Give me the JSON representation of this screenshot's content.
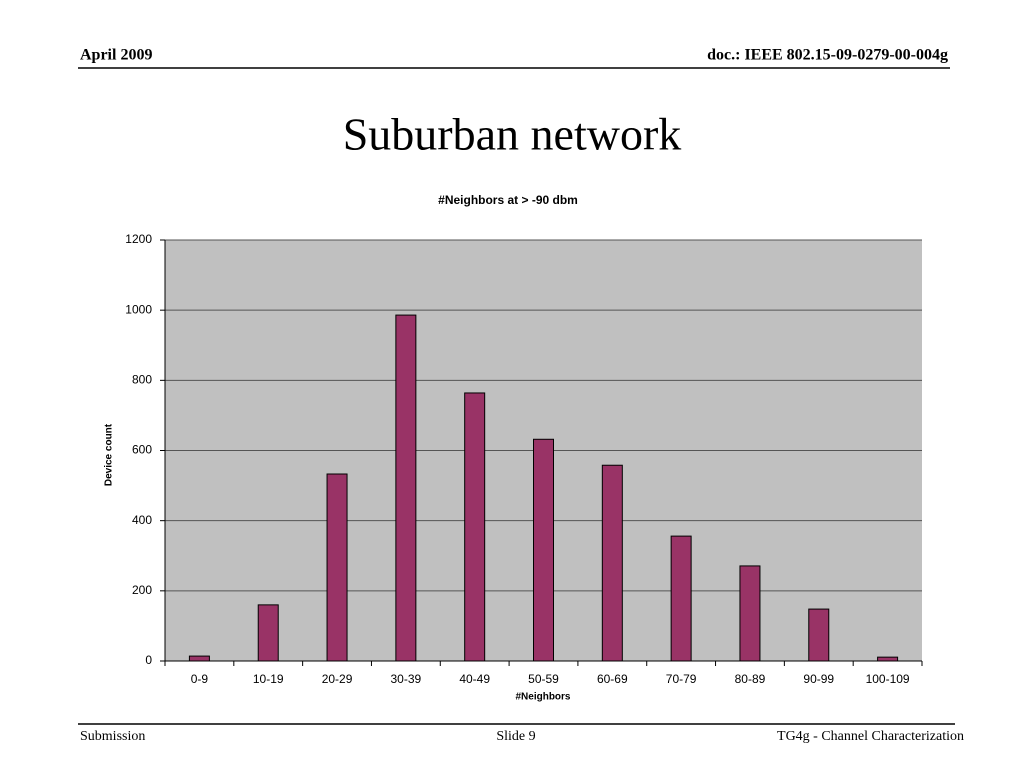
{
  "header": {
    "date": "April 2009",
    "doc": "doc.: IEEE 802.15-09-0279-00-004g"
  },
  "slide_title": "Suburban network",
  "footer": {
    "left": "Submission",
    "center": "Slide 9",
    "right": "TG4g - Channel Characterization"
  },
  "chart_data": {
    "type": "bar",
    "title": "#Neighbors at > -90 dbm",
    "x_label": "#Neighbors",
    "y_label": "Device count",
    "categories": [
      "0-9",
      "10-19",
      "20-29",
      "30-39",
      "40-49",
      "50-59",
      "60-69",
      "70-79",
      "80-89",
      "90-99",
      "100-109"
    ],
    "values": [
      14,
      160,
      533,
      986,
      764,
      632,
      558,
      356,
      271,
      148,
      11
    ],
    "color": "#993366",
    "ylim": [
      0,
      1200
    ],
    "yticks": [
      0,
      200,
      400,
      600,
      800,
      1000,
      1200
    ],
    "grid": true
  }
}
